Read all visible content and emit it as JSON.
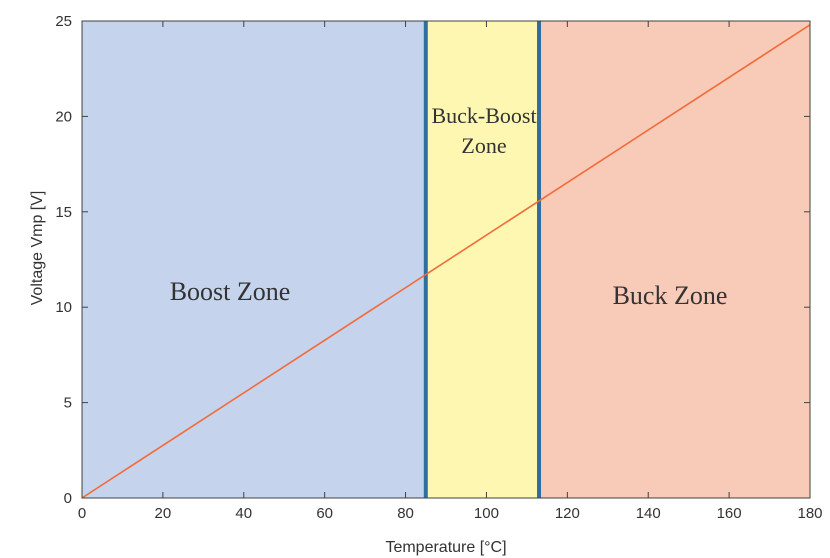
{
  "chart_data": {
    "type": "line",
    "title": "",
    "xlabel": "Temperature [°C]",
    "ylabel": "Voltage Vmp [V]",
    "xlim": [
      0,
      180
    ],
    "ylim": [
      0,
      25
    ],
    "xticks": [
      0,
      20,
      40,
      60,
      80,
      100,
      120,
      140,
      160,
      180
    ],
    "yticks": [
      0,
      5,
      10,
      15,
      20,
      25
    ],
    "grid": false,
    "series": [
      {
        "x": [
          0,
          180
        ],
        "y": [
          0,
          24.8
        ]
      }
    ],
    "zones": [
      {
        "label": "Boost Zone",
        "x_from": 0,
        "x_to": 85
      },
      {
        "label": "Buck-Boost Zone",
        "x_from": 85,
        "x_to": 113
      },
      {
        "label": "Buck Zone",
        "x_from": 113,
        "x_to": 180
      }
    ],
    "boundaries": [
      85,
      113
    ]
  },
  "colors": {
    "boost_zone": "#c5d4ec",
    "buck_boost_zone": "#fdf7b2",
    "buck_zone": "#f8cbb9",
    "boundary_line": "#2e6fa0",
    "series_line": "#f26b3a",
    "axis": "#404040"
  }
}
